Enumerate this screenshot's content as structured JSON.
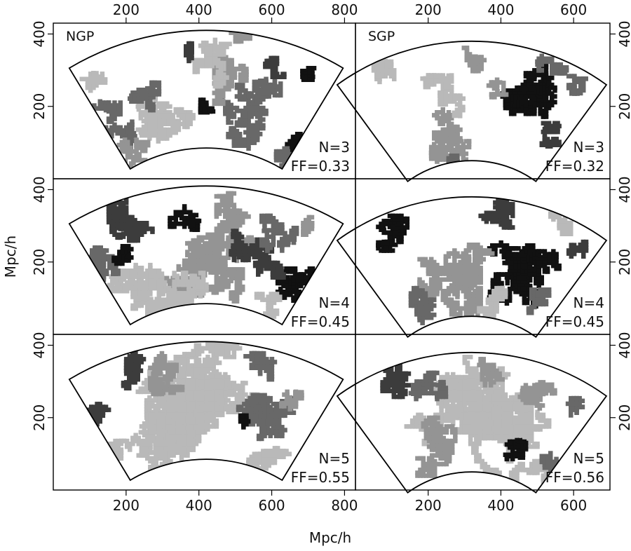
{
  "chart_data": {
    "type": "scatter",
    "figure": {
      "xlabel": "Mpc/h",
      "ylabel": "Mpc/h",
      "grayscale_levels": [
        "#111111",
        "#3c3c3c",
        "#686868",
        "#949494",
        "#b9b9b9"
      ]
    },
    "panels": [
      {
        "id": "ngp-n3",
        "tag": "NGP",
        "N": "N=3",
        "FF": "FF=0.33",
        "xlim": [
          0,
          830
        ],
        "ylim": [
          0,
          430
        ],
        "xticks": [
          "200",
          "400",
          "600",
          "800"
        ],
        "xtick_values": [
          200,
          400,
          600,
          800
        ],
        "yticks": [
          "200",
          "400"
        ],
        "ytick_values": [
          200,
          400
        ],
        "fan": {
          "x_origin": 420,
          "y_origin": -320,
          "r_inner": 405,
          "r_outer": 730,
          "half_angle_deg": 31
        },
        "filling_factor": 0.33,
        "seed": 11,
        "clusters": [
          {
            "x": 560,
            "y": 180,
            "size": 60,
            "shade": 2
          },
          {
            "x": 320,
            "y": 160,
            "size": 55,
            "shade": 4
          },
          {
            "x": 160,
            "y": 150,
            "size": 40,
            "shade": 2
          },
          {
            "x": 490,
            "y": 280,
            "size": 45,
            "shade": 3
          },
          {
            "x": 670,
            "y": 100,
            "size": 18,
            "shade": 0
          },
          {
            "x": 220,
            "y": 60,
            "size": 30,
            "shade": 3
          },
          {
            "x": 610,
            "y": 310,
            "size": 18,
            "shade": 1
          },
          {
            "x": 420,
            "y": 320,
            "size": 40,
            "shade": 4
          },
          {
            "x": 110,
            "y": 260,
            "size": 20,
            "shade": 4
          },
          {
            "x": 620,
            "y": 60,
            "size": 20,
            "shade": 2
          },
          {
            "x": 380,
            "y": 350,
            "size": 15,
            "shade": 1
          },
          {
            "x": 500,
            "y": 380,
            "size": 25,
            "shade": 3
          },
          {
            "x": 250,
            "y": 230,
            "size": 25,
            "shade": 2
          },
          {
            "x": 420,
            "y": 200,
            "size": 12,
            "shade": 0
          },
          {
            "x": 700,
            "y": 290,
            "size": 10,
            "shade": 0
          }
        ]
      },
      {
        "id": "sgp-n3",
        "tag": "SGP",
        "N": "N=3",
        "FF": "FF=0.32",
        "xlim": [
          0,
          700
        ],
        "ylim": [
          0,
          430
        ],
        "xticks": [
          "200",
          "400",
          "600"
        ],
        "xtick_values": [
          200,
          400,
          600
        ],
        "yticks": [
          "200",
          "400"
        ],
        "ytick_values": [
          200,
          400
        ],
        "fan": {
          "x_origin": 320,
          "y_origin": -250,
          "r_inner": 300,
          "r_outer": 630,
          "half_angle_deg": 36
        },
        "filling_factor": 0.32,
        "seed": 23,
        "clusters": [
          {
            "x": 460,
            "y": 220,
            "size": 60,
            "shade": 0
          },
          {
            "x": 240,
            "y": 120,
            "size": 45,
            "shade": 3
          },
          {
            "x": 240,
            "y": 230,
            "size": 35,
            "shade": 4
          },
          {
            "x": 90,
            "y": 300,
            "size": 30,
            "shade": 4
          },
          {
            "x": 540,
            "y": 300,
            "size": 25,
            "shade": 2
          },
          {
            "x": 330,
            "y": 330,
            "size": 20,
            "shade": 3
          },
          {
            "x": 520,
            "y": 130,
            "size": 25,
            "shade": 1
          },
          {
            "x": 610,
            "y": 260,
            "size": 15,
            "shade": 2
          },
          {
            "x": 280,
            "y": 40,
            "size": 15,
            "shade": 2
          },
          {
            "x": 390,
            "y": 250,
            "size": 15,
            "shade": 3
          }
        ]
      },
      {
        "id": "ngp-n4",
        "tag": "",
        "N": "N=4",
        "FF": "FF=0.45",
        "xlim": [
          0,
          830
        ],
        "ylim": [
          0,
          430
        ],
        "xticks": [],
        "xtick_values": [],
        "yticks": [
          "200",
          "400"
        ],
        "ytick_values": [
          200,
          400
        ],
        "fan": {
          "x_origin": 420,
          "y_origin": -320,
          "r_inner": 405,
          "r_outer": 730,
          "half_angle_deg": 31
        },
        "filling_factor": 0.45,
        "seed": 37,
        "clusters": [
          {
            "x": 400,
            "y": 180,
            "size": 90,
            "shade": 3
          },
          {
            "x": 250,
            "y": 120,
            "size": 60,
            "shade": 4
          },
          {
            "x": 200,
            "y": 300,
            "size": 45,
            "shade": 1
          },
          {
            "x": 480,
            "y": 310,
            "size": 50,
            "shade": 3
          },
          {
            "x": 680,
            "y": 150,
            "size": 40,
            "shade": 0
          },
          {
            "x": 560,
            "y": 230,
            "size": 45,
            "shade": 1
          },
          {
            "x": 130,
            "y": 200,
            "size": 30,
            "shade": 2
          },
          {
            "x": 340,
            "y": 90,
            "size": 50,
            "shade": 4
          },
          {
            "x": 620,
            "y": 280,
            "size": 30,
            "shade": 2
          },
          {
            "x": 190,
            "y": 220,
            "size": 15,
            "shade": 0
          },
          {
            "x": 590,
            "y": 80,
            "size": 20,
            "shade": 4
          },
          {
            "x": 360,
            "y": 330,
            "size": 25,
            "shade": 0
          },
          {
            "x": 710,
            "y": 300,
            "size": 15,
            "shade": 3
          }
        ]
      },
      {
        "id": "sgp-n4",
        "tag": "",
        "N": "N=4",
        "FF": "FF=0.45",
        "xlim": [
          0,
          700
        ],
        "ylim": [
          0,
          430
        ],
        "xticks": [],
        "xtick_values": [],
        "yticks": [
          "200",
          "400"
        ],
        "ytick_values": [
          200,
          400
        ],
        "fan": {
          "x_origin": 320,
          "y_origin": -250,
          "r_inner": 300,
          "r_outer": 630,
          "half_angle_deg": 36
        },
        "filling_factor": 0.45,
        "seed": 41,
        "clusters": [
          {
            "x": 480,
            "y": 190,
            "size": 70,
            "shade": 0
          },
          {
            "x": 280,
            "y": 160,
            "size": 70,
            "shade": 3
          },
          {
            "x": 110,
            "y": 280,
            "size": 30,
            "shade": 0
          },
          {
            "x": 400,
            "y": 320,
            "size": 40,
            "shade": 1
          },
          {
            "x": 200,
            "y": 80,
            "size": 30,
            "shade": 2
          },
          {
            "x": 560,
            "y": 310,
            "size": 20,
            "shade": 4
          },
          {
            "x": 380,
            "y": 80,
            "size": 30,
            "shade": 4
          },
          {
            "x": 500,
            "y": 100,
            "size": 25,
            "shade": 2
          },
          {
            "x": 610,
            "y": 240,
            "size": 15,
            "shade": 1
          }
        ]
      },
      {
        "id": "ngp-n5",
        "tag": "",
        "N": "N=5",
        "FF": "FF=0.55",
        "xlim": [
          0,
          830
        ],
        "ylim": [
          0,
          430
        ],
        "xticks": [
          "200",
          "400",
          "600",
          "800"
        ],
        "xtick_values": [
          200,
          400,
          600,
          800
        ],
        "yticks": [
          "200",
          "400"
        ],
        "ytick_values": [
          200,
          400
        ],
        "fan": {
          "x_origin": 420,
          "y_origin": -320,
          "r_inner": 405,
          "r_outer": 730,
          "half_angle_deg": 31
        },
        "filling_factor": 0.55,
        "seed": 53,
        "clusters": [
          {
            "x": 400,
            "y": 200,
            "size": 160,
            "shade": 4
          },
          {
            "x": 580,
            "y": 230,
            "size": 60,
            "shade": 2
          },
          {
            "x": 120,
            "y": 230,
            "size": 40,
            "shade": 1
          },
          {
            "x": 200,
            "y": 330,
            "size": 30,
            "shade": 1
          },
          {
            "x": 250,
            "y": 120,
            "size": 60,
            "shade": 4
          },
          {
            "x": 600,
            "y": 100,
            "size": 40,
            "shade": 4
          },
          {
            "x": 560,
            "y": 330,
            "size": 30,
            "shade": 2
          },
          {
            "x": 330,
            "y": 330,
            "size": 40,
            "shade": 3
          },
          {
            "x": 650,
            "y": 240,
            "size": 20,
            "shade": 3
          },
          {
            "x": 530,
            "y": 190,
            "size": 10,
            "shade": 0
          }
        ]
      },
      {
        "id": "sgp-n5",
        "tag": "",
        "N": "N=5",
        "FF": "FF=0.56",
        "xlim": [
          0,
          700
        ],
        "ylim": [
          0,
          430
        ],
        "xticks": [
          "200",
          "400",
          "600"
        ],
        "xtick_values": [
          200,
          400,
          600
        ],
        "yticks": [
          "200",
          "400"
        ],
        "ytick_values": [
          200,
          400
        ],
        "fan": {
          "x_origin": 320,
          "y_origin": -250,
          "r_inner": 300,
          "r_outer": 630,
          "half_angle_deg": 36
        },
        "filling_factor": 0.56,
        "seed": 67,
        "clusters": [
          {
            "x": 340,
            "y": 200,
            "size": 150,
            "shade": 4
          },
          {
            "x": 90,
            "y": 290,
            "size": 35,
            "shade": 1
          },
          {
            "x": 200,
            "y": 300,
            "size": 30,
            "shade": 2
          },
          {
            "x": 250,
            "y": 120,
            "size": 50,
            "shade": 3
          },
          {
            "x": 440,
            "y": 110,
            "size": 18,
            "shade": 0
          },
          {
            "x": 520,
            "y": 70,
            "size": 20,
            "shade": 2
          },
          {
            "x": 500,
            "y": 250,
            "size": 30,
            "shade": 3
          },
          {
            "x": 380,
            "y": 330,
            "size": 25,
            "shade": 3
          },
          {
            "x": 600,
            "y": 230,
            "size": 15,
            "shade": 2
          }
        ]
      }
    ]
  }
}
